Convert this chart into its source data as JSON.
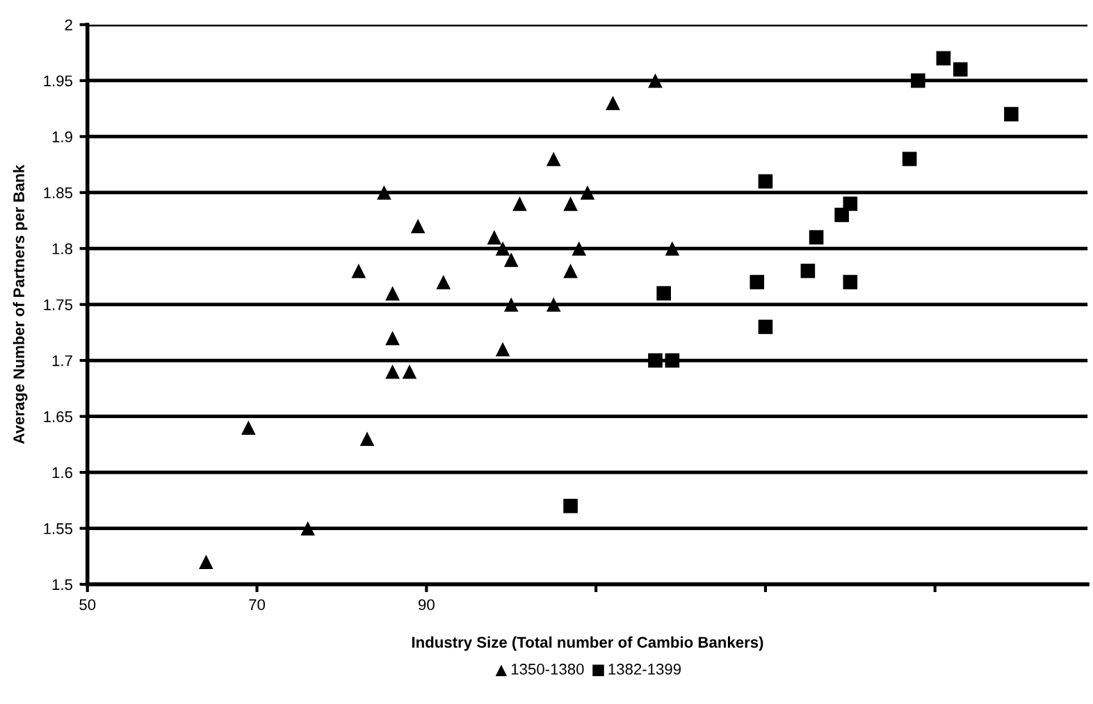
{
  "chart_data": {
    "type": "scatter",
    "xlabel": "Industry Size (Total number of Cambio Bankers)",
    "ylabel": "Average Number of Partners per Bank",
    "xlim": [
      50,
      168
    ],
    "xticks": [
      50,
      70,
      90,
      {
        "value": 110,
        "label": null
      },
      {
        "value": 130,
        "label": null
      },
      {
        "value": 150,
        "label": null
      }
    ],
    "ylim": [
      1.5,
      2
    ],
    "yticks": [
      1.5,
      1.55,
      1.6,
      1.65,
      1.7,
      1.75,
      1.8,
      1.85,
      1.9,
      1.95,
      2
    ],
    "grid": "y",
    "legend": "bottom",
    "series": [
      {
        "name": "1350-1380",
        "color": "#000000",
        "marker": "triangle",
        "x": [
          64,
          69,
          76,
          82,
          85,
          86,
          86,
          86,
          88,
          83,
          89,
          92,
          98,
          99,
          100,
          99,
          100,
          101,
          105,
          105,
          107,
          107,
          108,
          109,
          112,
          117,
          119
        ],
        "values": [
          1.52,
          1.64,
          1.55,
          1.78,
          1.85,
          1.76,
          1.72,
          1.69,
          1.69,
          1.63,
          1.82,
          1.77,
          1.81,
          1.8,
          1.79,
          1.71,
          1.75,
          1.84,
          1.88,
          1.75,
          1.84,
          1.78,
          1.8,
          1.85,
          1.93,
          1.95,
          1.8
        ]
      },
      {
        "name": "1382-1399",
        "color": "#000000",
        "marker": "square",
        "x": [
          107,
          117,
          119,
          118,
          130,
          129,
          130,
          135,
          136,
          139,
          140,
          140,
          147,
          148,
          151,
          153,
          159
        ],
        "values": [
          1.57,
          1.7,
          1.7,
          1.76,
          1.86,
          1.77,
          1.73,
          1.78,
          1.81,
          1.83,
          1.84,
          1.77,
          1.88,
          1.95,
          1.97,
          1.96,
          1.92
        ]
      }
    ]
  }
}
